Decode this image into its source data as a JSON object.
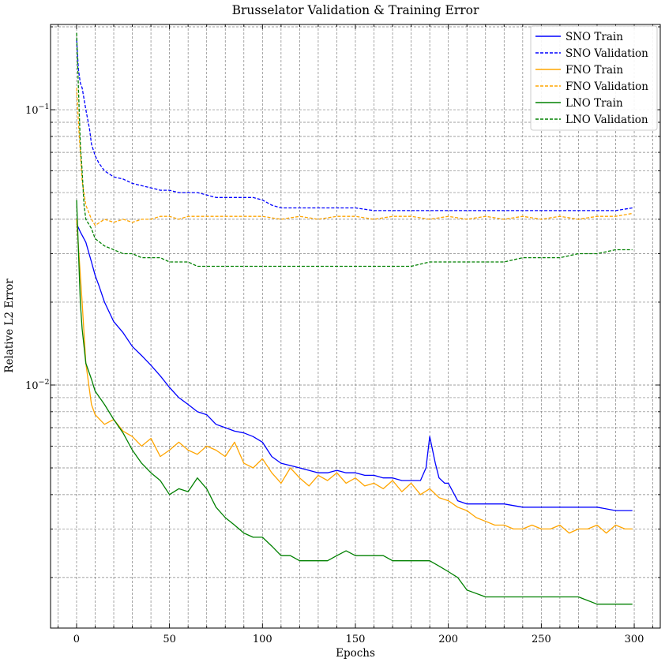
{
  "chart_data": {
    "type": "line",
    "title": "Brusselator Validation & Training Error",
    "xlabel": "Epochs",
    "ylabel": "Relative L2 Error",
    "xlim": [
      -14,
      314
    ],
    "ylim": [
      0.00131,
      0.204
    ],
    "yscale": "log",
    "grid": true,
    "legend_position": "top-right",
    "x_ticks": [
      0,
      50,
      100,
      150,
      200,
      250,
      300
    ],
    "x_tick_labels": [
      "0",
      "50",
      "100",
      "150",
      "200",
      "250",
      "300"
    ],
    "y_major_ticks": [
      0.01,
      0.1
    ],
    "y_major_labels": [
      "10−2",
      "10−1"
    ],
    "series": [
      {
        "name": "SNO Train",
        "color": "#0000ff",
        "style": "solid",
        "x": [
          0,
          2,
          5,
          8,
          10,
          12,
          15,
          20,
          25,
          30,
          35,
          40,
          45,
          50,
          55,
          60,
          65,
          70,
          75,
          80,
          85,
          90,
          95,
          100,
          105,
          110,
          115,
          120,
          125,
          130,
          135,
          140,
          145,
          150,
          155,
          160,
          165,
          170,
          175,
          180,
          185,
          188,
          190,
          193,
          195,
          198,
          200,
          205,
          210,
          220,
          230,
          240,
          250,
          260,
          270,
          280,
          290,
          295,
          299
        ],
        "values": [
          0.0385,
          0.036,
          0.033,
          0.028,
          0.025,
          0.023,
          0.02,
          0.017,
          0.0155,
          0.0138,
          0.0128,
          0.0118,
          0.0108,
          0.0098,
          0.009,
          0.0085,
          0.008,
          0.0078,
          0.0072,
          0.007,
          0.0068,
          0.0067,
          0.0065,
          0.0062,
          0.0055,
          0.0052,
          0.0051,
          0.005,
          0.0049,
          0.0048,
          0.0048,
          0.0049,
          0.0048,
          0.0048,
          0.0047,
          0.0047,
          0.0046,
          0.0046,
          0.0045,
          0.0045,
          0.0045,
          0.005,
          0.0065,
          0.0052,
          0.0046,
          0.0044,
          0.0044,
          0.0038,
          0.0037,
          0.0037,
          0.0037,
          0.0036,
          0.0036,
          0.0036,
          0.0036,
          0.0036,
          0.0035,
          0.0035,
          0.0035
        ]
      },
      {
        "name": "SNO Validation",
        "color": "#0000ff",
        "style": "dashed",
        "x": [
          0,
          1,
          2,
          3,
          5,
          7,
          8,
          10,
          12,
          15,
          20,
          25,
          30,
          35,
          40,
          45,
          50,
          55,
          60,
          65,
          70,
          75,
          80,
          85,
          90,
          95,
          100,
          105,
          110,
          120,
          130,
          140,
          150,
          160,
          170,
          180,
          190,
          200,
          210,
          220,
          230,
          240,
          250,
          260,
          270,
          280,
          290,
          299
        ],
        "values": [
          0.18,
          0.14,
          0.125,
          0.12,
          0.1,
          0.085,
          0.075,
          0.068,
          0.064,
          0.06,
          0.057,
          0.056,
          0.054,
          0.053,
          0.052,
          0.051,
          0.051,
          0.05,
          0.05,
          0.05,
          0.049,
          0.048,
          0.048,
          0.048,
          0.048,
          0.048,
          0.047,
          0.045,
          0.044,
          0.044,
          0.044,
          0.044,
          0.044,
          0.043,
          0.043,
          0.043,
          0.043,
          0.043,
          0.043,
          0.043,
          0.043,
          0.043,
          0.043,
          0.043,
          0.043,
          0.043,
          0.043,
          0.044
        ]
      },
      {
        "name": "FNO Train",
        "color": "#ffa500",
        "style": "solid",
        "x": [
          0,
          3,
          5,
          8,
          10,
          15,
          20,
          25,
          30,
          35,
          40,
          45,
          50,
          55,
          60,
          65,
          70,
          75,
          80,
          85,
          90,
          95,
          100,
          105,
          110,
          115,
          120,
          125,
          130,
          135,
          140,
          145,
          150,
          155,
          160,
          165,
          170,
          175,
          180,
          185,
          190,
          195,
          200,
          205,
          210,
          215,
          220,
          225,
          230,
          235,
          240,
          245,
          250,
          255,
          260,
          265,
          270,
          275,
          280,
          285,
          290,
          295,
          299
        ],
        "values": [
          0.04,
          0.02,
          0.012,
          0.0085,
          0.0078,
          0.0072,
          0.0075,
          0.0068,
          0.0065,
          0.006,
          0.0064,
          0.0055,
          0.0058,
          0.0062,
          0.0058,
          0.0056,
          0.006,
          0.0058,
          0.0055,
          0.0062,
          0.0052,
          0.005,
          0.0054,
          0.0048,
          0.0044,
          0.005,
          0.0046,
          0.0043,
          0.0047,
          0.0045,
          0.0048,
          0.0044,
          0.0046,
          0.0043,
          0.0044,
          0.0042,
          0.0045,
          0.0041,
          0.0044,
          0.004,
          0.0042,
          0.0039,
          0.0038,
          0.0036,
          0.0035,
          0.0033,
          0.0032,
          0.0031,
          0.0031,
          0.003,
          0.003,
          0.0031,
          0.003,
          0.003,
          0.0031,
          0.0029,
          0.003,
          0.003,
          0.0031,
          0.0029,
          0.0031,
          0.003,
          0.003
        ]
      },
      {
        "name": "FNO Validation",
        "color": "#ffa500",
        "style": "dashed",
        "x": [
          0,
          1,
          2,
          3,
          5,
          8,
          10,
          15,
          20,
          25,
          30,
          35,
          40,
          45,
          50,
          55,
          60,
          65,
          70,
          75,
          80,
          85,
          90,
          95,
          100,
          110,
          120,
          130,
          140,
          150,
          160,
          170,
          180,
          190,
          200,
          210,
          220,
          230,
          240,
          250,
          260,
          270,
          280,
          290,
          299
        ],
        "values": [
          0.12,
          0.09,
          0.07,
          0.055,
          0.045,
          0.04,
          0.038,
          0.04,
          0.039,
          0.04,
          0.039,
          0.04,
          0.04,
          0.041,
          0.041,
          0.04,
          0.041,
          0.041,
          0.041,
          0.041,
          0.041,
          0.041,
          0.041,
          0.041,
          0.041,
          0.04,
          0.041,
          0.04,
          0.041,
          0.041,
          0.04,
          0.041,
          0.041,
          0.04,
          0.041,
          0.04,
          0.041,
          0.04,
          0.041,
          0.04,
          0.041,
          0.04,
          0.041,
          0.041,
          0.042
        ]
      },
      {
        "name": "LNO Train",
        "color": "#008000",
        "style": "solid",
        "x": [
          0,
          2,
          3,
          5,
          8,
          10,
          15,
          20,
          25,
          30,
          35,
          40,
          45,
          50,
          55,
          60,
          65,
          70,
          75,
          80,
          85,
          90,
          95,
          100,
          105,
          110,
          115,
          120,
          125,
          130,
          135,
          140,
          145,
          150,
          155,
          160,
          165,
          170,
          175,
          180,
          185,
          190,
          195,
          200,
          205,
          210,
          220,
          230,
          240,
          250,
          260,
          270,
          280,
          290,
          295,
          299
        ],
        "values": [
          0.047,
          0.02,
          0.016,
          0.012,
          0.0105,
          0.0095,
          0.0085,
          0.0075,
          0.0067,
          0.0058,
          0.0052,
          0.0048,
          0.0045,
          0.004,
          0.0042,
          0.0041,
          0.0046,
          0.0042,
          0.0036,
          0.0033,
          0.0031,
          0.0029,
          0.0028,
          0.0028,
          0.0026,
          0.0024,
          0.0024,
          0.0023,
          0.0023,
          0.0023,
          0.0023,
          0.0024,
          0.0025,
          0.0024,
          0.0024,
          0.0024,
          0.0024,
          0.0023,
          0.0023,
          0.0023,
          0.0023,
          0.0023,
          0.0022,
          0.0021,
          0.002,
          0.0018,
          0.0017,
          0.0017,
          0.0017,
          0.0017,
          0.0017,
          0.0017,
          0.0016,
          0.0016,
          0.0016,
          0.0016
        ]
      },
      {
        "name": "LNO Validation",
        "color": "#008000",
        "style": "dashed",
        "x": [
          0,
          1,
          2,
          3,
          4,
          5,
          8,
          10,
          15,
          20,
          25,
          30,
          35,
          40,
          45,
          50,
          55,
          60,
          65,
          70,
          75,
          80,
          85,
          90,
          95,
          100,
          110,
          120,
          130,
          140,
          150,
          160,
          170,
          180,
          190,
          200,
          210,
          220,
          230,
          240,
          250,
          260,
          270,
          280,
          290,
          299
        ],
        "values": [
          0.19,
          0.12,
          0.075,
          0.06,
          0.045,
          0.04,
          0.037,
          0.034,
          0.032,
          0.031,
          0.03,
          0.03,
          0.029,
          0.029,
          0.029,
          0.028,
          0.028,
          0.028,
          0.027,
          0.027,
          0.027,
          0.027,
          0.027,
          0.027,
          0.027,
          0.027,
          0.027,
          0.027,
          0.027,
          0.027,
          0.027,
          0.027,
          0.027,
          0.027,
          0.028,
          0.028,
          0.028,
          0.028,
          0.028,
          0.029,
          0.029,
          0.029,
          0.03,
          0.03,
          0.031,
          0.031
        ]
      }
    ]
  }
}
